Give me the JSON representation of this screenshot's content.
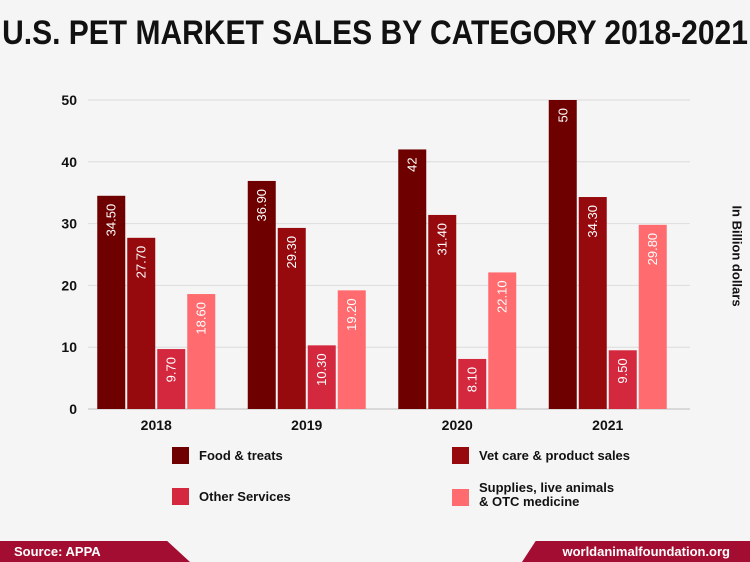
{
  "chart_data": {
    "type": "bar",
    "title": "U.S. PET MARKET SALES BY CATEGORY 2018-2021",
    "ylabel": "In Billion dollars",
    "categories": [
      "2018",
      "2019",
      "2020",
      "2021"
    ],
    "ylim": [
      0,
      50
    ],
    "yticks": [
      0,
      10,
      20,
      30,
      40,
      50
    ],
    "grid": true,
    "series": [
      {
        "name": "Food & treats",
        "color": "#6e0000",
        "values": [
          34.5,
          36.9,
          42,
          50
        ],
        "labels": [
          "34.50",
          "36.90",
          "42",
          "50"
        ]
      },
      {
        "name": "Vet care & product sales",
        "color": "#960a0e",
        "values": [
          27.7,
          29.3,
          31.4,
          34.3
        ],
        "labels": [
          "27.70",
          "29.30",
          "31.40",
          "34.30"
        ]
      },
      {
        "name": "Other Services",
        "color": "#d4283e",
        "values": [
          9.7,
          10.3,
          8.1,
          9.5
        ],
        "labels": [
          "9.70",
          "10.30",
          "8.10",
          "9.50"
        ]
      },
      {
        "name": "Supplies, live animals\n & OTC medicine",
        "color": "#ff6b6e",
        "values": [
          18.6,
          19.2,
          22.1,
          29.8
        ],
        "labels": [
          "18.60",
          "19.20",
          "22.10",
          "29.80"
        ]
      }
    ]
  },
  "footer": {
    "source": "Source: APPA",
    "site": "worldanimalfoundation.org"
  }
}
